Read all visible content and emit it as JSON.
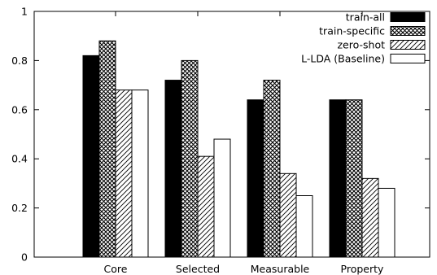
{
  "chart_data": {
    "type": "bar",
    "categories": [
      "Core",
      "Selected",
      "Measurable",
      "Property"
    ],
    "series": [
      {
        "name": "train-all",
        "values": [
          0.82,
          0.72,
          0.64,
          0.64
        ],
        "pattern": "solid",
        "color": "#000000"
      },
      {
        "name": "train-specific",
        "values": [
          0.88,
          0.8,
          0.72,
          0.64
        ],
        "pattern": "crosshatch",
        "color": "#000000"
      },
      {
        "name": "zero-shot",
        "values": [
          0.68,
          0.41,
          0.34,
          0.32
        ],
        "pattern": "diagonal",
        "color": "#000000"
      },
      {
        "name": "L-LDA (Baseline)",
        "values": [
          0.68,
          0.48,
          0.25,
          0.28
        ],
        "pattern": "empty",
        "color": "#ffffff"
      }
    ],
    "ylim": [
      0,
      1
    ],
    "yticks": [
      0,
      0.2,
      0.4,
      0.6,
      0.8,
      1
    ],
    "ytick_labels": [
      "0",
      "0.2",
      "0.4",
      "0.6",
      "0.8",
      "1"
    ],
    "grid": false,
    "legend_position": "top-right"
  }
}
